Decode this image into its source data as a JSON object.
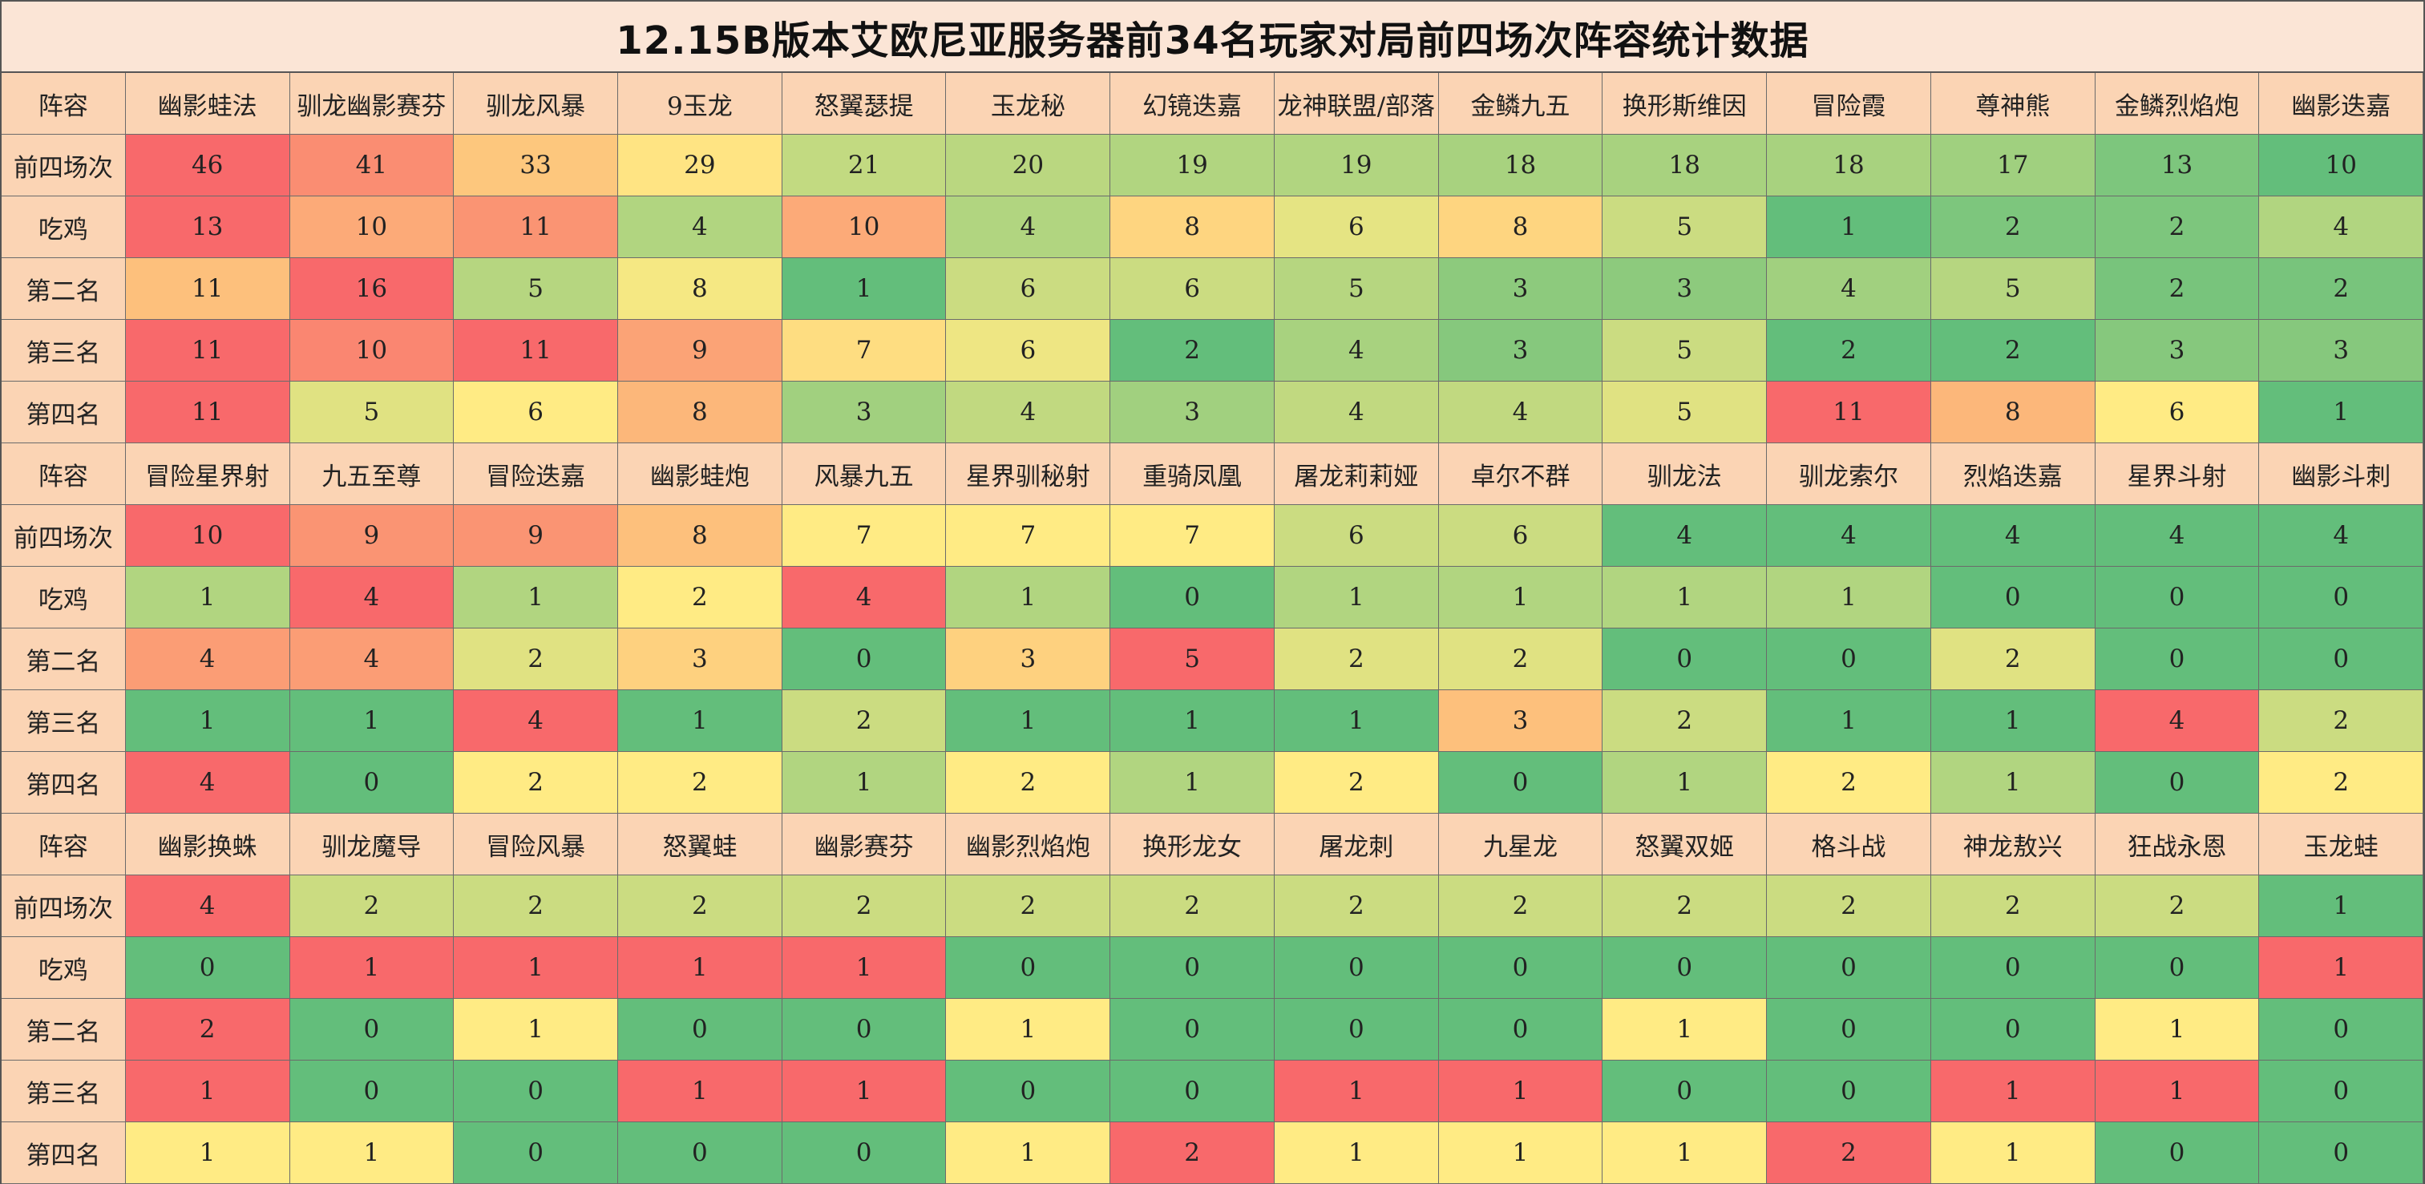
{
  "title": "12.15B版本艾欧尼亚服务器前34名玩家对局前四场次阵容统计数据",
  "colors": {
    "header_bg": "#fbd4b4",
    "title_bg": "#fbe5d6",
    "scale_low": "#63be7b",
    "scale_mid": "#ffeb84",
    "scale_high": "#f8696b"
  },
  "chart_data": {
    "type": "table",
    "title": "12.15B版本艾欧尼亚服务器前34名玩家对局前四场次阵容统计数据",
    "row_labels": [
      "前四场次",
      "吃鸡",
      "第二名",
      "第三名",
      "第四名"
    ],
    "header_label": "阵容",
    "blocks": [
      {
        "lineups": [
          "幽影蛙法",
          "驯龙幽影赛芬",
          "驯龙风暴",
          "9玉龙",
          "怒翼瑟提",
          "玉龙秘",
          "幻镜迭嘉",
          "龙神联盟/部落",
          "金鳞九五",
          "换形斯维因",
          "冒险霞",
          "尊神熊",
          "金鳞烈焰炮",
          "幽影迭嘉"
        ],
        "rows": [
          [
            46,
            41,
            33,
            29,
            21,
            20,
            19,
            19,
            18,
            18,
            18,
            17,
            13,
            10
          ],
          [
            13,
            10,
            11,
            4,
            10,
            4,
            8,
            6,
            8,
            5,
            1,
            2,
            2,
            4
          ],
          [
            11,
            16,
            5,
            8,
            1,
            6,
            6,
            5,
            3,
            3,
            4,
            5,
            2,
            2
          ],
          [
            11,
            10,
            11,
            9,
            7,
            6,
            2,
            4,
            3,
            5,
            2,
            2,
            3,
            3
          ],
          [
            11,
            5,
            6,
            8,
            3,
            4,
            3,
            4,
            4,
            5,
            11,
            8,
            6,
            1
          ]
        ]
      },
      {
        "lineups": [
          "冒险星界射",
          "九五至尊",
          "冒险迭嘉",
          "幽影蛙炮",
          "风暴九五",
          "星界驯秘射",
          "重骑凤凰",
          "屠龙莉莉娅",
          "卓尔不群",
          "驯龙法",
          "驯龙索尔",
          "烈焰迭嘉",
          "星界斗射",
          "幽影斗刺"
        ],
        "rows": [
          [
            10,
            9,
            9,
            8,
            7,
            7,
            7,
            6,
            6,
            4,
            4,
            4,
            4,
            4
          ],
          [
            1,
            4,
            1,
            2,
            4,
            1,
            0,
            1,
            1,
            1,
            1,
            0,
            0,
            0
          ],
          [
            4,
            4,
            2,
            3,
            0,
            3,
            5,
            2,
            2,
            0,
            0,
            2,
            0,
            0
          ],
          [
            1,
            1,
            4,
            1,
            2,
            1,
            1,
            1,
            3,
            2,
            1,
            1,
            4,
            2
          ],
          [
            4,
            0,
            2,
            2,
            1,
            2,
            1,
            2,
            0,
            1,
            2,
            1,
            0,
            2
          ]
        ]
      },
      {
        "lineups": [
          "幽影换蛛",
          "驯龙魔导",
          "冒险风暴",
          "怒翼蛙",
          "幽影赛芬",
          "幽影烈焰炮",
          "换形龙女",
          "屠龙刺",
          "九星龙",
          "怒翼双姬",
          "格斗战",
          "神龙敖兴",
          "狂战永恩",
          "玉龙蛙"
        ],
        "rows": [
          [
            4,
            2,
            2,
            2,
            2,
            2,
            2,
            2,
            2,
            2,
            2,
            2,
            2,
            1
          ],
          [
            0,
            1,
            1,
            1,
            1,
            0,
            0,
            0,
            0,
            0,
            0,
            0,
            0,
            1
          ],
          [
            2,
            0,
            1,
            0,
            0,
            1,
            0,
            0,
            0,
            1,
            0,
            0,
            1,
            0
          ],
          [
            1,
            0,
            0,
            1,
            1,
            0,
            0,
            1,
            1,
            0,
            0,
            1,
            1,
            0
          ],
          [
            1,
            1,
            0,
            0,
            0,
            1,
            2,
            1,
            1,
            1,
            2,
            1,
            0,
            0
          ]
        ]
      }
    ]
  }
}
